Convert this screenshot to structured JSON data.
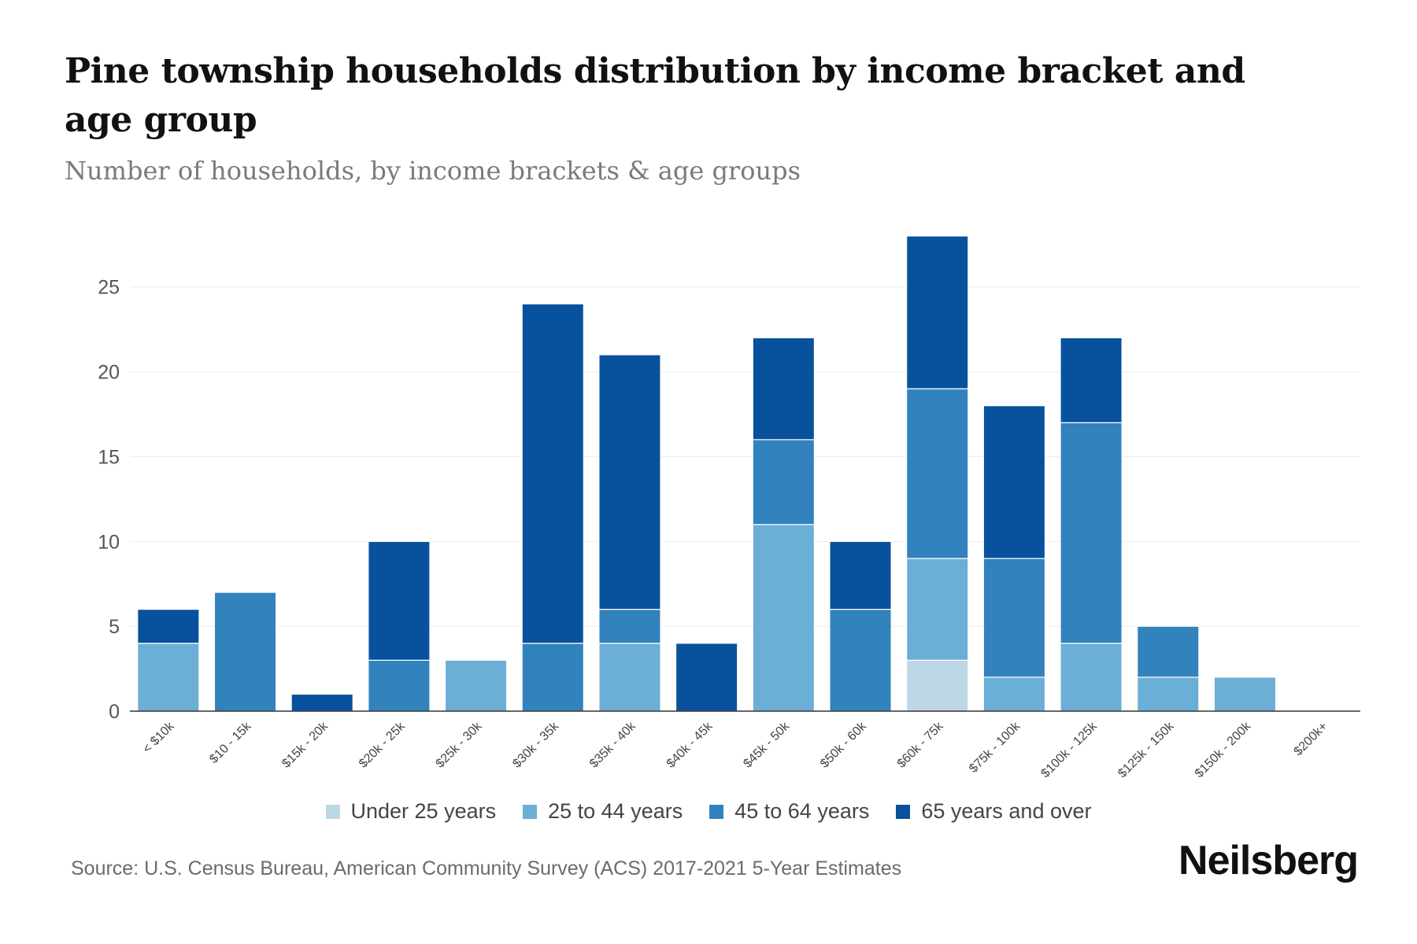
{
  "title": "Pine township households distribution by income bracket and age group",
  "subtitle": "Number of households, by income brackets & age groups",
  "source": "Source: U.S. Census Bureau, American Community Survey (ACS) 2017-2021 5-Year Estimates",
  "brand": "Neilsberg",
  "chart_data": {
    "type": "bar",
    "stacked": true,
    "categories": [
      "< $10k",
      "$10 - 15k",
      "$15k - 20k",
      "$20k - 25k",
      "$25k - 30k",
      "$30k - 35k",
      "$35k - 40k",
      "$40k - 45k",
      "$45k - 50k",
      "$50k - 60k",
      "$60k - 75k",
      "$75k - 100k",
      "$100k - 125k",
      "$125k - 150k",
      "$150k - 200k",
      "$200k+"
    ],
    "series": [
      {
        "name": "Under 25 years",
        "color": "#bdd7e7",
        "values": [
          0,
          0,
          0,
          0,
          0,
          0,
          0,
          0,
          0,
          0,
          3,
          0,
          0,
          0,
          0,
          0
        ]
      },
      {
        "name": "25 to 44 years",
        "color": "#6baed6",
        "values": [
          4,
          0,
          0,
          0,
          3,
          0,
          4,
          0,
          11,
          0,
          6,
          2,
          4,
          2,
          2,
          0
        ]
      },
      {
        "name": "45 to 64 years",
        "color": "#3182bd",
        "values": [
          0,
          7,
          0,
          3,
          0,
          4,
          2,
          0,
          5,
          6,
          10,
          7,
          13,
          3,
          0,
          0
        ]
      },
      {
        "name": "65 years and over",
        "color": "#08519c",
        "values": [
          2,
          0,
          1,
          7,
          0,
          20,
          15,
          4,
          6,
          4,
          9,
          9,
          5,
          0,
          0,
          0
        ]
      }
    ],
    "yticks": [
      0,
      5,
      10,
      15,
      20,
      25
    ],
    "ylim": [
      0,
      28
    ],
    "xlabel": "",
    "ylabel": "",
    "grid": true,
    "legend": "bottom-center"
  }
}
